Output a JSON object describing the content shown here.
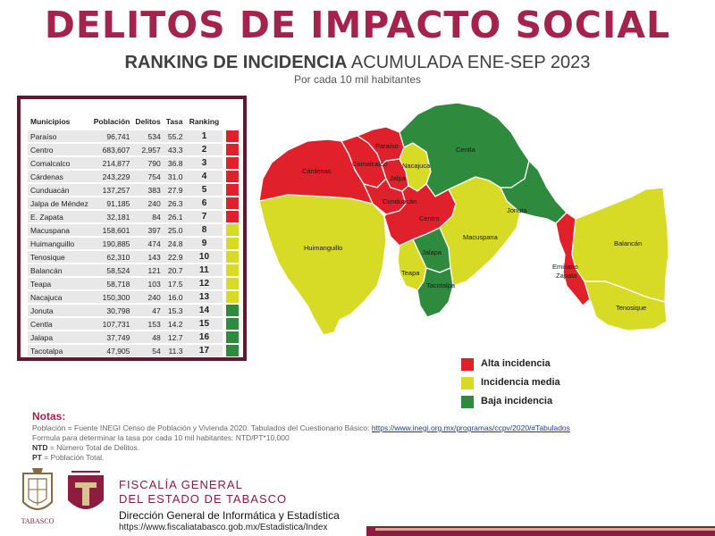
{
  "header": {
    "title": "DELITOS DE IMPACTO SOCIAL",
    "subtitle_bold": "RANKING DE INCIDENCIA",
    "subtitle_rest": " ACUMULADA ENE-SEP 2023",
    "per": "Por cada 10 mil habitantes"
  },
  "table": {
    "headers": [
      "Municipios",
      "Población",
      "Delitos",
      "Tasa",
      "Ranking"
    ],
    "rows": [
      {
        "municipio": "Paraíso",
        "poblacion": "96,741",
        "delitos": "534",
        "tasa": "55.2",
        "ranking": "1",
        "level": "alta"
      },
      {
        "municipio": "Centro",
        "poblacion": "683,607",
        "delitos": "2,957",
        "tasa": "43.3",
        "ranking": "2",
        "level": "alta"
      },
      {
        "municipio": "Comalcalco",
        "poblacion": "214,877",
        "delitos": "790",
        "tasa": "36.8",
        "ranking": "3",
        "level": "alta"
      },
      {
        "municipio": "Cárdenas",
        "poblacion": "243,229",
        "delitos": "754",
        "tasa": "31.0",
        "ranking": "4",
        "level": "alta"
      },
      {
        "municipio": "Cunduacán",
        "poblacion": "137,257",
        "delitos": "383",
        "tasa": "27.9",
        "ranking": "5",
        "level": "alta"
      },
      {
        "municipio": "Jalpa de Méndez",
        "poblacion": "91,185",
        "delitos": "240",
        "tasa": "26.3",
        "ranking": "6",
        "level": "alta"
      },
      {
        "municipio": "E. Zapata",
        "poblacion": "32,181",
        "delitos": "84",
        "tasa": "26.1",
        "ranking": "7",
        "level": "alta"
      },
      {
        "municipio": "Macuspana",
        "poblacion": "158,601",
        "delitos": "397",
        "tasa": "25.0",
        "ranking": "8",
        "level": "media"
      },
      {
        "municipio": "Huimanguillo",
        "poblacion": "190,885",
        "delitos": "474",
        "tasa": "24.8",
        "ranking": "9",
        "level": "media"
      },
      {
        "municipio": "Tenosique",
        "poblacion": "62,310",
        "delitos": "143",
        "tasa": "22.9",
        "ranking": "10",
        "level": "media"
      },
      {
        "municipio": "Balancán",
        "poblacion": "58,524",
        "delitos": "121",
        "tasa": "20.7",
        "ranking": "11",
        "level": "media"
      },
      {
        "municipio": "Teapa",
        "poblacion": "58,718",
        "delitos": "103",
        "tasa": "17.5",
        "ranking": "12",
        "level": "media"
      },
      {
        "municipio": "Nacajuca",
        "poblacion": "150,300",
        "delitos": "240",
        "tasa": "16.0",
        "ranking": "13",
        "level": "media"
      },
      {
        "municipio": "Jonuta",
        "poblacion": "30,798",
        "delitos": "47",
        "tasa": "15.3",
        "ranking": "14",
        "level": "baja"
      },
      {
        "municipio": "Centla",
        "poblacion": "107,731",
        "delitos": "153",
        "tasa": "14.2",
        "ranking": "15",
        "level": "baja"
      },
      {
        "municipio": "Jalapa",
        "poblacion": "37,749",
        "delitos": "48",
        "tasa": "12.7",
        "ranking": "16",
        "level": "baja"
      },
      {
        "municipio": "Tacotalpa",
        "poblacion": "47,905",
        "delitos": "54",
        "tasa": "11.3",
        "ranking": "17",
        "level": "baja"
      }
    ]
  },
  "map": {
    "labels": {
      "paraiso": "Paraíso",
      "centla": "Centla",
      "cardenas": "Cárdenas",
      "comalcalco": "Comalcalco",
      "nacajuca": "Nacajuca",
      "jalpa": "Jalpa",
      "cunduacan": "Cunduacán",
      "jonuta": "Jonuta",
      "centro": "Centro",
      "huimanguillo": "Huimanguillo",
      "macuspana": "Macuspana",
      "jalapa": "Jalapa",
      "teapa": "Teapa",
      "tacotalpa": "Tacotalpa",
      "balancan": "Balancán",
      "zapata1": "Emiliano",
      "zapata2": "Zapata",
      "tenosique": "Tenosique"
    }
  },
  "legend": [
    {
      "label": "Alta incidencia",
      "color": "#e0202a"
    },
    {
      "label": "Incidencia media",
      "color": "#d8db26"
    },
    {
      "label": "Baja incidencia",
      "color": "#2e8a3c"
    }
  ],
  "colors": {
    "alta": "#e0202a",
    "media": "#d8db26",
    "baja": "#2e8a3c",
    "accent": "#a3234c"
  },
  "notes": {
    "heading": "Notas:",
    "line1": "Población = Fuente INEGI Censo de Población y Vivienda 2020. Tabulados del Cuestionario Básico: ",
    "link": "https://www.inegi.org.mx/programas/ccpv/2020/#Tabulados",
    "line2": "Formula para determinar la tasa por cada 10 mil habitantes: NTD/PT*10,000",
    "line3_key": "NTD",
    "line3_rest": " = Número Total de Delitos.",
    "line4_key": "PT",
    "line4_rest": " = Población Total."
  },
  "footer": {
    "logo_text": "TABASCO",
    "org1": "FISCALÍA GENERAL",
    "org2": "DEL ESTADO DE TABASCO",
    "dir": "Dirección General de Informática y Estadística",
    "url": "https://www.fiscaliatabasco.gob.mx/Estadistica/Index"
  }
}
